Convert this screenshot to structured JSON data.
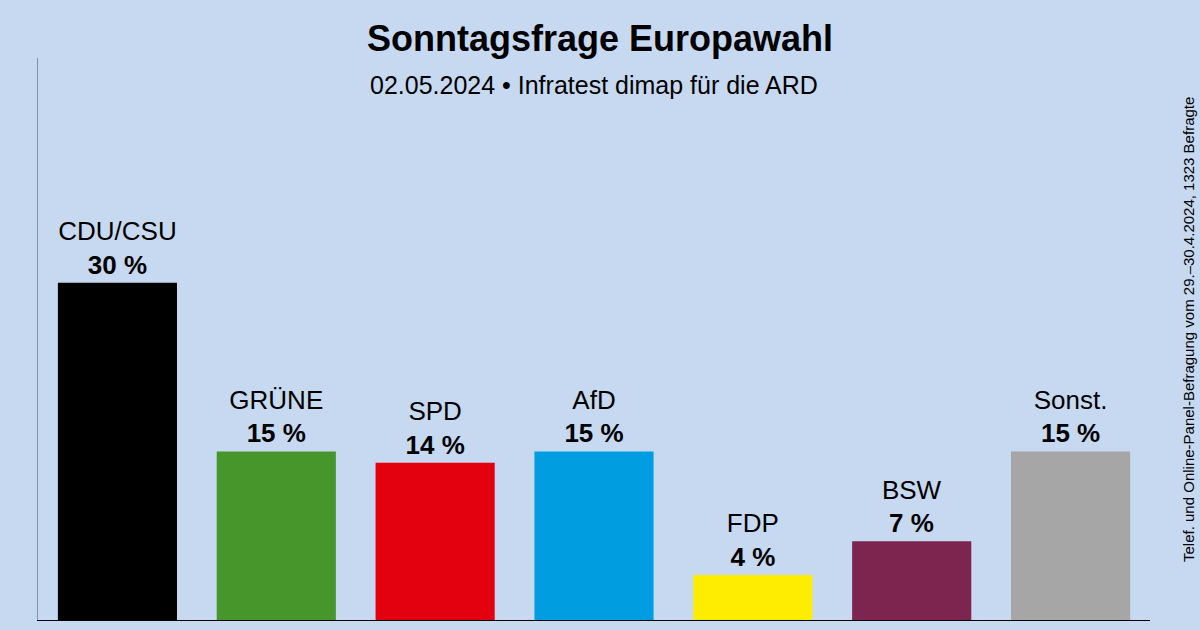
{
  "chart_data": {
    "type": "bar",
    "title": "Sonntagsfrage Europawahl",
    "subtitle": "02.05.2024 • Infratest dimap für die ARD",
    "annotations": [
      "Telef. und Online-Panel-Befragung vom 29.–30.4.2024, 1323 Befragte"
    ],
    "categories": [
      "CDU/CSU",
      "GRÜNE",
      "SPD",
      "AfD",
      "FDP",
      "BSW",
      "Sonst."
    ],
    "values": [
      30,
      15,
      14,
      15,
      4,
      7,
      15
    ],
    "value_labels": [
      "30 %",
      "15 %",
      "14 %",
      "15 %",
      "4 %",
      "7 %",
      "15 %"
    ],
    "colors": [
      "#000000",
      "#46962b",
      "#e3000f",
      "#009ee0",
      "#ffed00",
      "#7d254f",
      "#a6a6a6"
    ],
    "ylim": [
      0,
      50
    ],
    "grid": false,
    "data_labels": true,
    "tick_labels": false
  }
}
